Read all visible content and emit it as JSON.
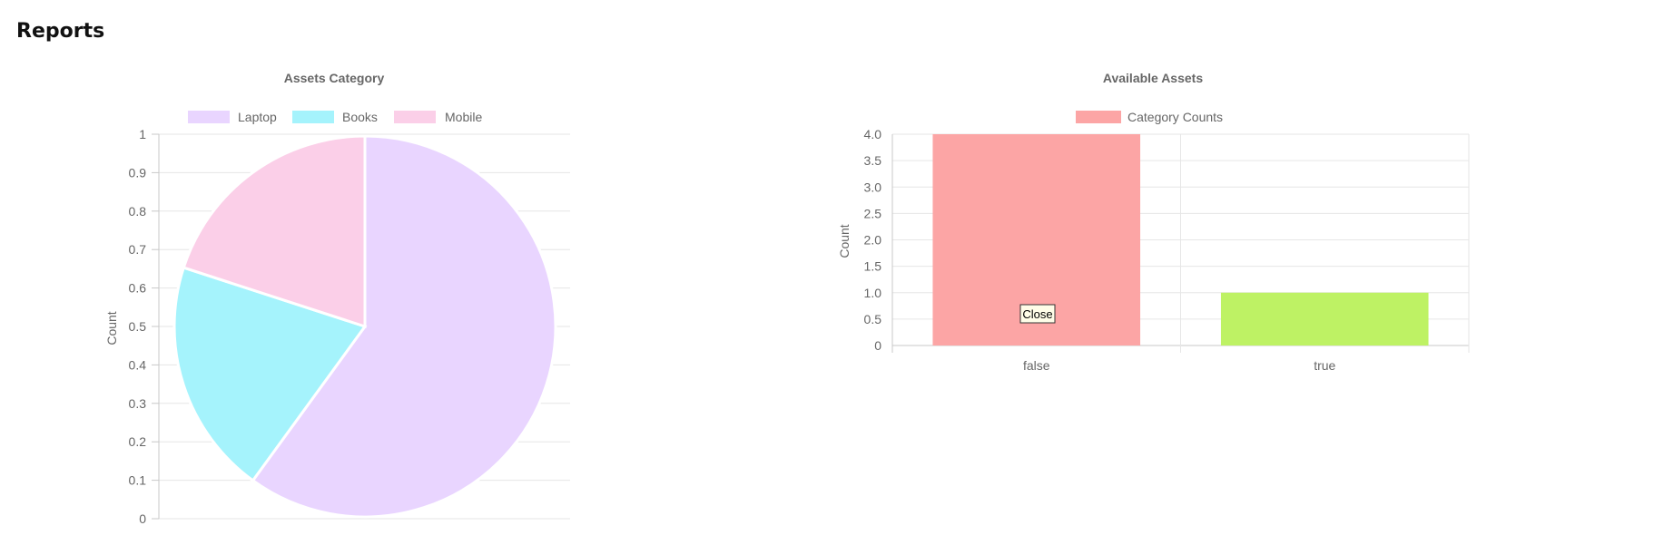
{
  "page": {
    "title": "Reports"
  },
  "chart_data": [
    {
      "type": "pie",
      "title": "Assets Category",
      "ylabel": "Count",
      "ylim": [
        0,
        1
      ],
      "y_ticks": [
        "0",
        "0.1",
        "0.2",
        "0.3",
        "0.4",
        "0.5",
        "0.6",
        "0.7",
        "0.8",
        "0.9",
        "1"
      ],
      "categories": [
        "Laptop",
        "Books",
        "Mobile"
      ],
      "values": [
        3,
        1,
        1
      ],
      "colors": [
        "#e9d5ff",
        "#a5f3fc",
        "#fbcfe8"
      ],
      "legend": "top",
      "grid": true
    },
    {
      "type": "bar",
      "title": "Available Assets",
      "ylabel": "Count",
      "ylim": [
        0,
        4
      ],
      "y_ticks": [
        "0",
        "0.5",
        "1.0",
        "1.5",
        "2.0",
        "2.5",
        "3.0",
        "3.5",
        "4.0"
      ],
      "categories": [
        "false",
        "true"
      ],
      "series": [
        {
          "name": "Category Counts",
          "values": [
            4,
            1
          ]
        }
      ],
      "bar_colors": [
        "#fca5a5",
        "#bef264"
      ],
      "legend": "top",
      "grid": true,
      "tooltip": "Close"
    }
  ]
}
